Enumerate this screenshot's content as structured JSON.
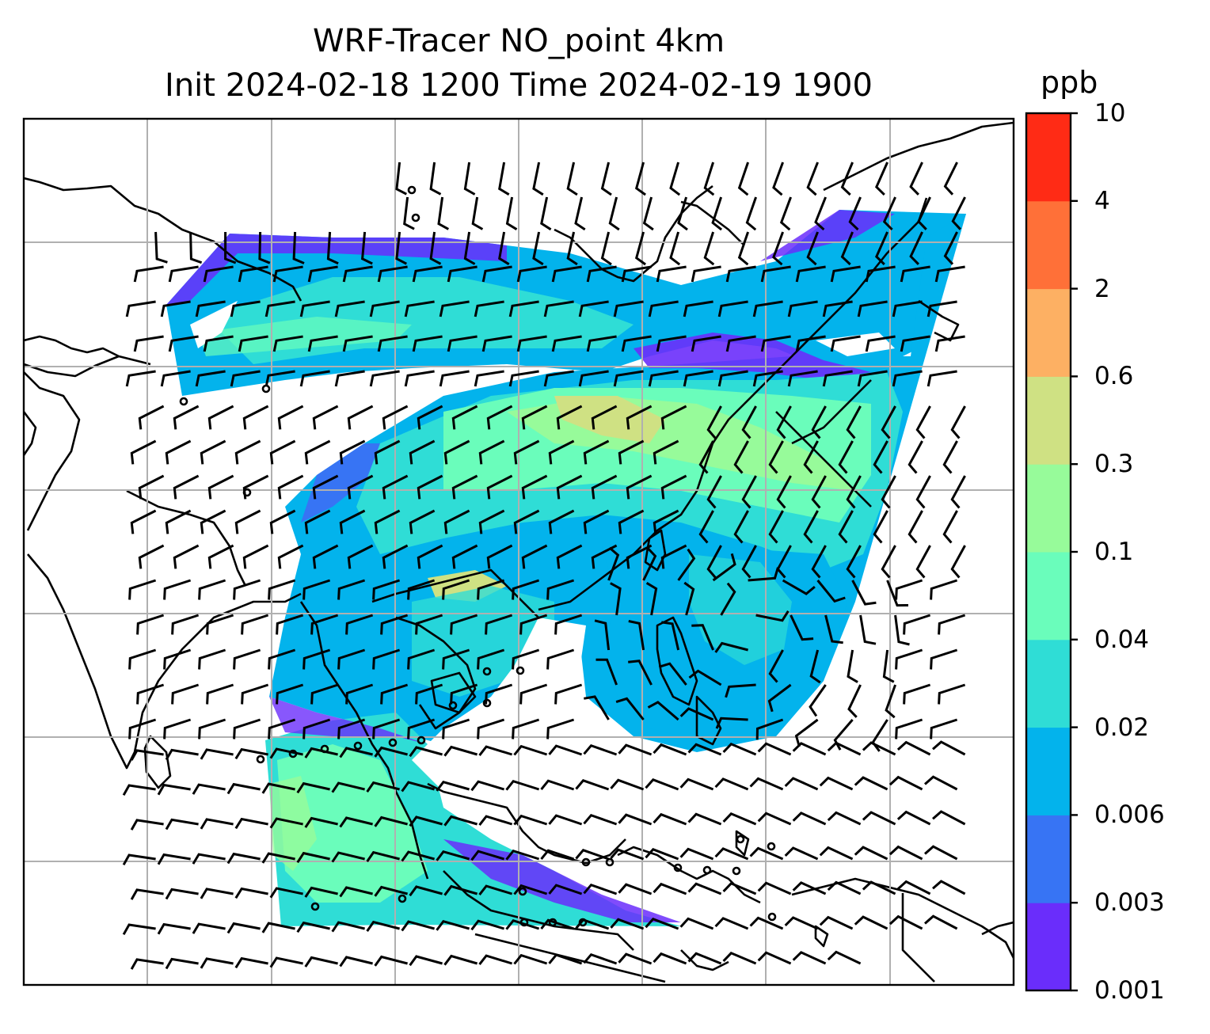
{
  "title": {
    "line1": "WRF-Tracer NO_point 4km",
    "line2": "Init 2024-02-18 1200 Time 2024-02-19 1900"
  },
  "colorbar": {
    "unit": "ppb",
    "levels": [
      "0.001",
      "0.003",
      "0.006",
      "0.02",
      "0.04",
      "0.1",
      "0.3",
      "0.6",
      "2",
      "4",
      "10"
    ],
    "colors": [
      "#6a2dfb",
      "#3774f4",
      "#03b3ec",
      "#2fddd6",
      "#6afdbb",
      "#97fb9a",
      "#cfe183",
      "#fdb063",
      "#ff7038",
      "#ff2b15"
    ]
  },
  "map": {
    "features": [
      "coastlines",
      "country-borders",
      "gridlines",
      "wind-barbs",
      "tracer-concentration"
    ],
    "gridline_color": "#b0b0b0"
  }
}
